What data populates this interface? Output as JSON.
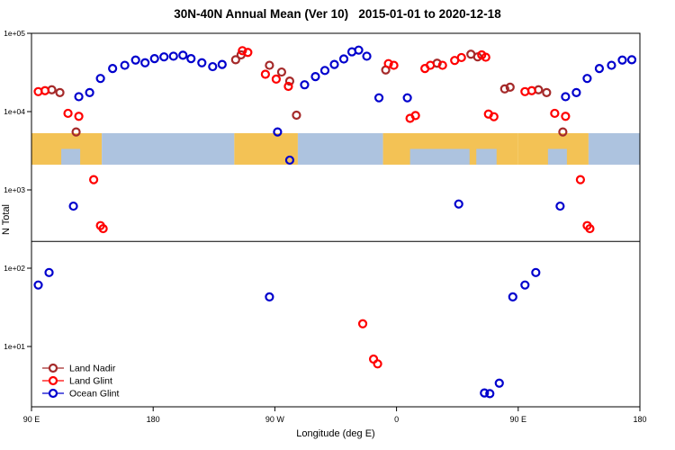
{
  "chart_data": {
    "type": "scatter",
    "title": "30N-40N Annual Mean (Ver 10)   2015-01-01 to 2020-12-18",
    "xlabel": "Longitude (deg E)",
    "ylabel": "N Total",
    "x_axis": {
      "min": 90,
      "max": 540,
      "note": "longitude axis wraps eastward: 90E to 180 to 90W to 0 to 90E to 180",
      "ticks": [
        {
          "lon": 90,
          "label": "90 E"
        },
        {
          "lon": 180,
          "label": "180"
        },
        {
          "lon": 270,
          "label": "90 W"
        },
        {
          "lon": 360,
          "label": "0"
        },
        {
          "lon": 450,
          "label": "90 E"
        },
        {
          "lon": 540,
          "label": "180"
        }
      ]
    },
    "y_axis": {
      "scale": "log",
      "ticks": [
        {
          "value": 100000,
          "label": "1e+05"
        },
        {
          "value": 10000,
          "label": "1e+04"
        },
        {
          "value": 1000,
          "label": "1e+03"
        },
        {
          "value": 100,
          "label": "1e+02"
        },
        {
          "value": 10,
          "label": "1e+01"
        }
      ]
    },
    "reference_line_value": 220,
    "map_band": {
      "value_top": 5300,
      "value_bottom": 2100,
      "land_color": "#F3C255",
      "ocean_color": "#ADC3DF",
      "segments": [
        {
          "from": 90,
          "to": 142,
          "surface": "land"
        },
        {
          "from": 112,
          "to": 126,
          "surface": "ocean",
          "half": "bottom"
        },
        {
          "from": 142,
          "to": 240,
          "surface": "ocean"
        },
        {
          "from": 240,
          "to": 287,
          "surface": "land"
        },
        {
          "from": 287,
          "to": 350,
          "surface": "ocean"
        },
        {
          "from": 350,
          "to": 450,
          "surface": "land"
        },
        {
          "from": 370,
          "to": 414,
          "surface": "ocean",
          "half": "bottom"
        },
        {
          "from": 419,
          "to": 434,
          "surface": "ocean",
          "half": "bottom"
        },
        {
          "from": 450,
          "to": 502,
          "surface": "land"
        },
        {
          "from": 472,
          "to": 486,
          "surface": "ocean",
          "half": "bottom"
        },
        {
          "from": 502,
          "to": 540,
          "surface": "ocean"
        }
      ]
    },
    "series": [
      {
        "name": "Land Nadir",
        "color": "#A52A2A",
        "points": [
          [
            105,
            19000
          ],
          [
            111,
            17500
          ],
          [
            123,
            5500
          ],
          [
            241,
            46000
          ],
          [
            245,
            53000
          ],
          [
            266,
            39000
          ],
          [
            275,
            32000
          ],
          [
            281,
            24500
          ],
          [
            286,
            9000
          ],
          [
            352,
            34000
          ],
          [
            390,
            41500
          ],
          [
            415,
            54000
          ],
          [
            420,
            50000
          ],
          [
            440,
            19500
          ],
          [
            444,
            20500
          ],
          [
            465,
            19000
          ],
          [
            471,
            17500
          ],
          [
            483,
            5500
          ]
        ]
      },
      {
        "name": "Land Glint",
        "color": "#FF0000",
        "points": [
          [
            95,
            18000
          ],
          [
            100,
            18500
          ],
          [
            117,
            9500
          ],
          [
            125,
            8700
          ],
          [
            136,
            1350
          ],
          [
            141,
            350
          ],
          [
            143,
            320
          ],
          [
            246,
            60000
          ],
          [
            250,
            57000
          ],
          [
            263,
            30000
          ],
          [
            271,
            26000
          ],
          [
            280,
            21000
          ],
          [
            335,
            19.5
          ],
          [
            343,
            6.9
          ],
          [
            346,
            6
          ],
          [
            354,
            41000
          ],
          [
            358,
            39000
          ],
          [
            370,
            8200
          ],
          [
            374,
            8900
          ],
          [
            381,
            35500
          ],
          [
            385,
            39000
          ],
          [
            394,
            39000
          ],
          [
            403,
            45000
          ],
          [
            408,
            49000
          ],
          [
            423,
            53000
          ],
          [
            426,
            49500
          ],
          [
            428,
            9300
          ],
          [
            432,
            8600
          ],
          [
            455,
            18000
          ],
          [
            460,
            18500
          ],
          [
            477,
            9500
          ],
          [
            485,
            8700
          ],
          [
            496,
            1350
          ],
          [
            501,
            350
          ],
          [
            503,
            320
          ]
        ]
      },
      {
        "name": "Ocean Glint",
        "color": "#0000CD",
        "points": [
          [
            95,
            61
          ],
          [
            103,
            88
          ],
          [
            121,
            620
          ],
          [
            125,
            15500
          ],
          [
            133,
            17500
          ],
          [
            141,
            26500
          ],
          [
            150,
            35500
          ],
          [
            159,
            39000
          ],
          [
            167,
            45500
          ],
          [
            174,
            42000
          ],
          [
            181,
            47500
          ],
          [
            188,
            50000
          ],
          [
            195,
            51000
          ],
          [
            202,
            52500
          ],
          [
            208,
            47500
          ],
          [
            216,
            42000
          ],
          [
            224,
            37500
          ],
          [
            231,
            40000
          ],
          [
            266,
            43
          ],
          [
            272,
            5500
          ],
          [
            281,
            2400
          ],
          [
            292,
            22000
          ],
          [
            300,
            28000
          ],
          [
            307,
            33500
          ],
          [
            314,
            40000
          ],
          [
            321,
            47000
          ],
          [
            327,
            58000
          ],
          [
            332,
            61000
          ],
          [
            338,
            51000
          ],
          [
            347,
            15000
          ],
          [
            368,
            15000
          ],
          [
            406,
            660
          ],
          [
            425,
            2.55
          ],
          [
            429,
            2.5
          ],
          [
            436,
            3.4
          ],
          [
            446,
            43
          ],
          [
            455,
            61
          ],
          [
            463,
            88
          ],
          [
            481,
            620
          ],
          [
            485,
            15500
          ],
          [
            493,
            17500
          ],
          [
            501,
            26500
          ],
          [
            510,
            35500
          ],
          [
            519,
            39000
          ],
          [
            527,
            45500
          ],
          [
            534,
            46000
          ]
        ]
      }
    ],
    "legend": {
      "position": "bottom-left",
      "entries": [
        "Land Nadir",
        "Land Glint",
        "Ocean Glint"
      ]
    }
  }
}
